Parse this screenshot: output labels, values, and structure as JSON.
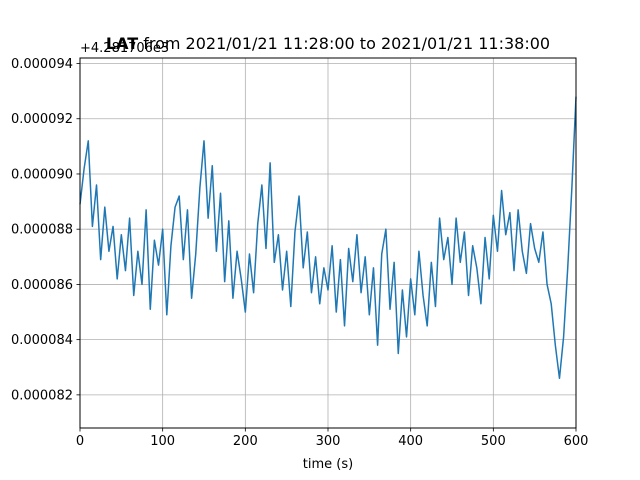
{
  "chart_data": {
    "type": "line",
    "title_bold": "LAT",
    "title_rest": " from 2021/01/21 11:28:00 to 2021/01/21 11:38:00",
    "offset_label": "+4.281706e3",
    "xlabel": "time (s)",
    "ylabel": "",
    "xlim": [
      0,
      600
    ],
    "ylim": [
      8.08e-05,
      9.42e-05
    ],
    "x_ticks": [
      0,
      100,
      200,
      300,
      400,
      500,
      600
    ],
    "x_tick_labels": [
      "0",
      "100",
      "200",
      "300",
      "400",
      "500",
      "600"
    ],
    "y_ticks": [
      8.2e-05,
      8.4e-05,
      8.6e-05,
      8.8e-05,
      9e-05,
      9.2e-05,
      9.4e-05
    ],
    "y_tick_labels": [
      "0.000082",
      "0.000084",
      "0.000086",
      "0.000088",
      "0.000090",
      "0.000092",
      "0.000094"
    ],
    "grid": true,
    "line_color": "#1f77b4",
    "series": [
      {
        "x": [
          0,
          5,
          10,
          15,
          20,
          25,
          30,
          35,
          40,
          45,
          50,
          55,
          60,
          65,
          70,
          75,
          80,
          85,
          90,
          95,
          100,
          105,
          110,
          115,
          120,
          125,
          130,
          135,
          140,
          145,
          150,
          155,
          160,
          165,
          170,
          175,
          180,
          185,
          190,
          195,
          200,
          205,
          210,
          215,
          220,
          225,
          230,
          235,
          240,
          245,
          250,
          255,
          260,
          265,
          270,
          275,
          280,
          285,
          290,
          295,
          300,
          305,
          310,
          315,
          320,
          325,
          330,
          335,
          340,
          345,
          350,
          355,
          360,
          365,
          370,
          375,
          380,
          385,
          390,
          395,
          400,
          405,
          410,
          415,
          420,
          425,
          430,
          435,
          440,
          445,
          450,
          455,
          460,
          465,
          470,
          475,
          480,
          485,
          490,
          495,
          500,
          505,
          510,
          515,
          520,
          525,
          530,
          535,
          540,
          545,
          550,
          555,
          560,
          565,
          570,
          575,
          580,
          585,
          590,
          595,
          600
        ],
        "y": [
          8.89e-05,
          9.02e-05,
          9.12e-05,
          8.81e-05,
          8.96e-05,
          8.69e-05,
          8.88e-05,
          8.72e-05,
          8.81e-05,
          8.62e-05,
          8.78e-05,
          8.65e-05,
          8.84e-05,
          8.56e-05,
          8.72e-05,
          8.6e-05,
          8.87e-05,
          8.51e-05,
          8.76e-05,
          8.67e-05,
          8.8e-05,
          8.49e-05,
          8.74e-05,
          8.88e-05,
          8.92e-05,
          8.69e-05,
          8.87e-05,
          8.55e-05,
          8.71e-05,
          8.95e-05,
          9.12e-05,
          8.84e-05,
          9.03e-05,
          8.72e-05,
          8.93e-05,
          8.61e-05,
          8.83e-05,
          8.55e-05,
          8.72e-05,
          8.62e-05,
          8.5e-05,
          8.71e-05,
          8.57e-05,
          8.82e-05,
          8.96e-05,
          8.73e-05,
          9.04e-05,
          8.68e-05,
          8.78e-05,
          8.58e-05,
          8.72e-05,
          8.52e-05,
          8.79e-05,
          8.92e-05,
          8.66e-05,
          8.79e-05,
          8.57e-05,
          8.7e-05,
          8.53e-05,
          8.66e-05,
          8.58e-05,
          8.74e-05,
          8.5e-05,
          8.69e-05,
          8.45e-05,
          8.73e-05,
          8.61e-05,
          8.78e-05,
          8.57e-05,
          8.7e-05,
          8.49e-05,
          8.66e-05,
          8.38e-05,
          8.71e-05,
          8.8e-05,
          8.51e-05,
          8.68e-05,
          8.35e-05,
          8.58e-05,
          8.41e-05,
          8.62e-05,
          8.49e-05,
          8.72e-05,
          8.56e-05,
          8.45e-05,
          8.68e-05,
          8.52e-05,
          8.84e-05,
          8.69e-05,
          8.77e-05,
          8.6e-05,
          8.84e-05,
          8.68e-05,
          8.79e-05,
          8.56e-05,
          8.74e-05,
          8.66e-05,
          8.53e-05,
          8.77e-05,
          8.62e-05,
          8.85e-05,
          8.72e-05,
          8.94e-05,
          8.78e-05,
          8.86e-05,
          8.65e-05,
          8.87e-05,
          8.72e-05,
          8.64e-05,
          8.82e-05,
          8.73e-05,
          8.68e-05,
          8.79e-05,
          8.6e-05,
          8.53e-05,
          8.38e-05,
          8.26e-05,
          8.41e-05,
          8.66e-05,
          8.95e-05,
          9.28e-05
        ]
      }
    ]
  }
}
